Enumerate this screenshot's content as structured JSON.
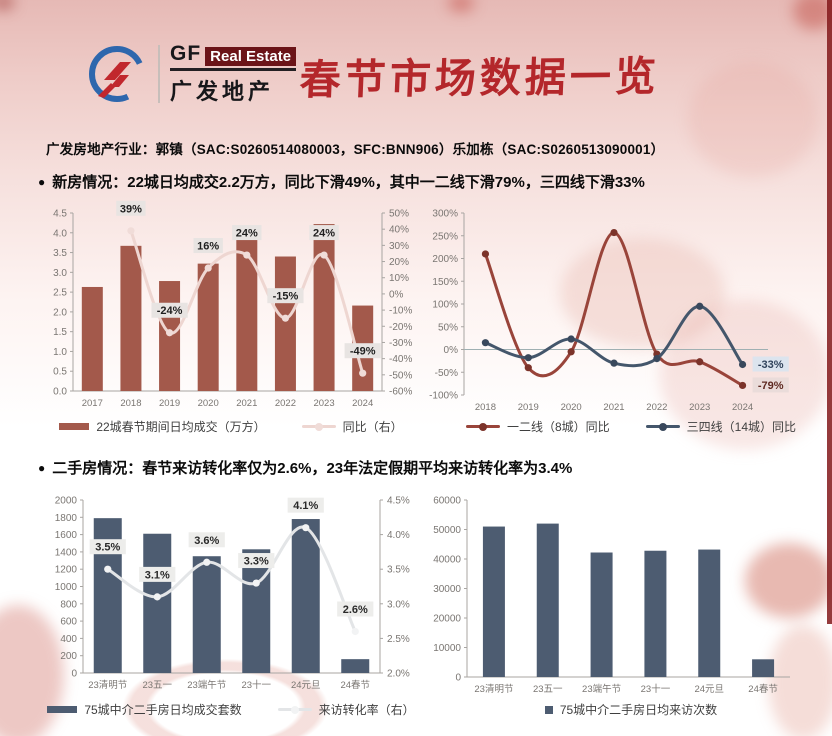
{
  "page": {
    "accent_red": "#b4272b",
    "edge_strip_color": "#82181a",
    "bullet_marker": "●"
  },
  "header": {
    "logo": {
      "en_gf": "GF",
      "en_realestate": "Real Estate",
      "cn": "广发地产"
    },
    "title": "春节市场数据一览"
  },
  "analyst_line": "广发房地产行业：郭镇（SAC:S0260514080003，SFC:BNN906）乐加栋（SAC:S0260513090001）",
  "sections": [
    {
      "bullet": "新房情况：22城日均成交2.2万方，同比下滑49%，其中一二线下滑79%，三四线下滑33%"
    },
    {
      "bullet": "二手房情况：春节来访转化率仅为2.6%，23年法定假期平均来访转化率为3.4%"
    }
  ],
  "chart_data": [
    {
      "id": "new-home-daily-sales",
      "type": "bar",
      "categories": [
        "2017",
        "2018",
        "2019",
        "2020",
        "2021",
        "2022",
        "2023",
        "2024"
      ],
      "left_axis": {
        "min": 0,
        "max": 4.5,
        "step": 0.5,
        "decimals": 1
      },
      "right_axis": {
        "min": -60,
        "max": 50,
        "step": 10,
        "suffix": "%"
      },
      "bar_series": {
        "name": "22城春节期间日均成交（万方）",
        "color": "#a3594b",
        "values": [
          2.63,
          3.67,
          2.78,
          3.22,
          3.98,
          3.4,
          4.22,
          2.16
        ]
      },
      "line_series": [
        {
          "name": "同比（右）",
          "axis": "right",
          "color": "#eed6d1",
          "marker_color": "#f0dcd8",
          "values": [
            null,
            39,
            -24,
            16,
            24,
            -15,
            24,
            -49
          ],
          "labels": [
            "",
            "39%",
            "-24%",
            "16%",
            "24%",
            "-15%",
            "24%",
            "-49%"
          ],
          "label_bg": "#e8e4e2",
          "label_color": "#1f1f1f"
        }
      ],
      "grid": false,
      "legend_position": "bottom"
    },
    {
      "id": "new-home-yoy-by-tier",
      "type": "line",
      "categories": [
        "2018",
        "2019",
        "2020",
        "2021",
        "2022",
        "2023",
        "2024"
      ],
      "left_axis": {
        "min": -100,
        "max": 300,
        "step": 50,
        "suffix": "%"
      },
      "zero_line": true,
      "line_series": [
        {
          "name": "一二线（8城）同比",
          "color": "#99443a",
          "marker_color": "#7c332a",
          "values": [
            210,
            -40,
            -5,
            257,
            -10,
            -27,
            -79
          ],
          "end_label": {
            "text": "-79%",
            "bg": "#eadcda",
            "color": "#5f2a22"
          }
        },
        {
          "name": "三四线（14城）同比",
          "color": "#44566b",
          "marker_color": "#39485c",
          "values": [
            15,
            -18,
            23,
            -30,
            -20,
            95,
            -33
          ],
          "end_label": {
            "text": "-33%",
            "bg": "#dce4ee",
            "color": "#31435b"
          }
        }
      ],
      "grid": false,
      "legend_position": "bottom"
    },
    {
      "id": "secondhand-daily-deals-conversion",
      "type": "bar",
      "categories": [
        "23清明节",
        "23五一",
        "23端午节",
        "23十一",
        "24元旦",
        "24春节"
      ],
      "left_axis": {
        "min": 0,
        "max": 2000,
        "step": 200
      },
      "right_axis": {
        "min": 2.0,
        "max": 4.5,
        "step": 0.5,
        "decimals": 1,
        "suffix": "%"
      },
      "bar_series": {
        "name": "75城中介二手房日均成交套数",
        "color": "#4d5c71",
        "values": [
          1790,
          1610,
          1350,
          1430,
          1780,
          160
        ]
      },
      "line_series": [
        {
          "name": "来访转化率（右）",
          "axis": "right",
          "color": "#e3e5e7",
          "marker_color": "#f2f3f4",
          "values": [
            3.5,
            3.1,
            3.6,
            3.3,
            4.1,
            2.6
          ],
          "labels": [
            "3.5%",
            "3.1%",
            "3.6%",
            "3.3%",
            "4.1%",
            "2.6%"
          ],
          "label_bg": "#ededeb",
          "label_color": "#2a2a2a"
        }
      ],
      "grid": false,
      "legend_position": "bottom"
    },
    {
      "id": "secondhand-daily-visits",
      "type": "bar",
      "categories": [
        "23清明节",
        "23五一",
        "23端午节",
        "23十一",
        "24元旦",
        "24春节"
      ],
      "left_axis": {
        "min": 0,
        "max": 60000,
        "step": 10000
      },
      "bar_series": {
        "name": "75城中介二手房日均来访次数",
        "color": "#4d5c71",
        "values": [
          51000,
          52000,
          42200,
          42800,
          43200,
          6000
        ]
      },
      "grid": false,
      "legend_position": "bottom"
    }
  ]
}
